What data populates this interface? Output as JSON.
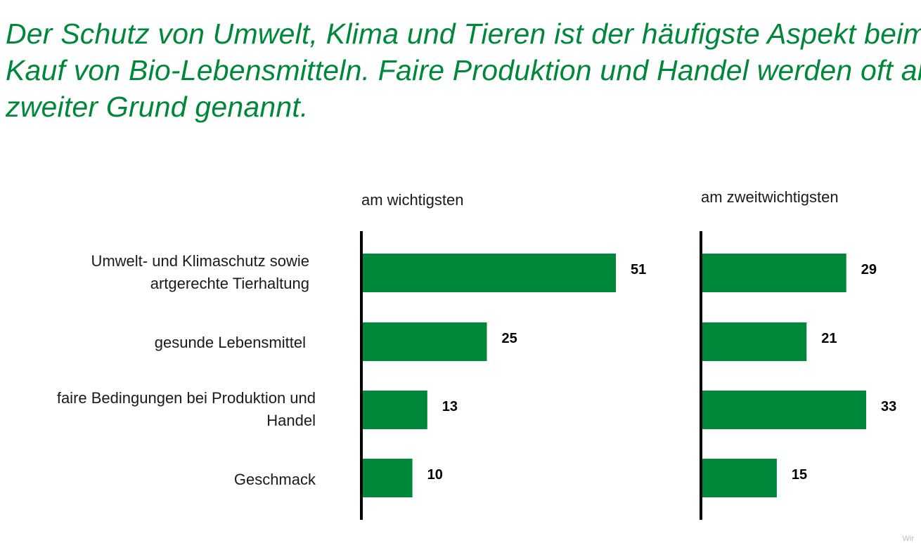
{
  "headline": {
    "lines": [
      "Der Schutz von Umwelt, Klima und Tieren ist der häufigste Aspekt beim",
      "Kauf von Bio-Lebensmitteln. Faire Produktion und Handel werden oft als",
      "zweiter Grund genannt."
    ]
  },
  "colors": {
    "accent": "#00883a",
    "axis": "#000000",
    "text": "#1a1a1a"
  },
  "watermark": "Wir",
  "chart_data": {
    "type": "bar",
    "orientation": "horizontal",
    "categories": [
      "Umwelt- und Klimaschutz sowie\nartgerechte Tierhaltung",
      "gesunde Lebensmittel",
      "faire Bedingungen bei Produktion und\nHandel",
      "Geschmack"
    ],
    "series": [
      {
        "name": "am wichtigsten",
        "values": [
          51,
          25,
          13,
          10
        ]
      },
      {
        "name": "am zweitwichtigsten",
        "values": [
          29,
          21,
          33,
          15
        ]
      }
    ],
    "xlim": [
      0,
      60
    ],
    "color": "#00883a",
    "data_labels": true,
    "grid": false
  }
}
